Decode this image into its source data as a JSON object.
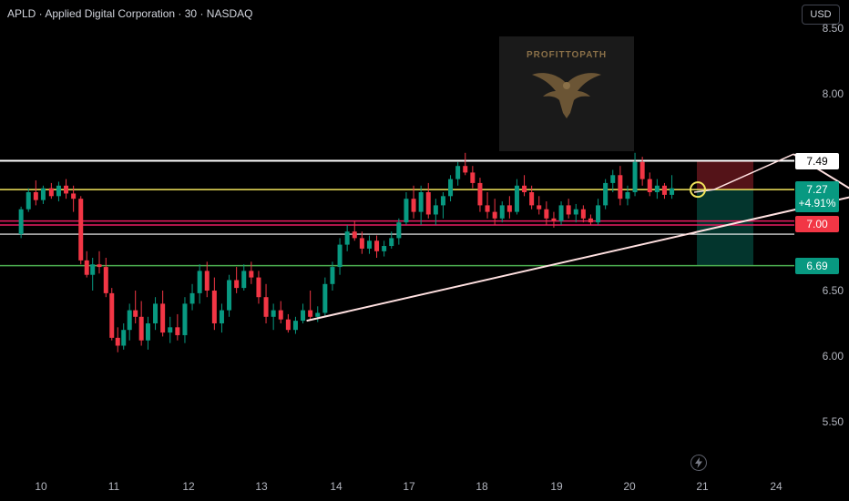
{
  "header": {
    "title": "APLD · Applied Digital Corporation · 30 · NASDAQ",
    "currency": "USD"
  },
  "watermark": {
    "text": "PROFITTOPATH"
  },
  "price_axis": {
    "ticks": [
      "8.50",
      "8.00",
      "6.50",
      "6.00",
      "5.50"
    ]
  },
  "time_axis": {
    "ticks": [
      "10",
      "11",
      "12",
      "13",
      "14",
      "17",
      "18",
      "19",
      "20",
      "21",
      "24"
    ]
  },
  "price_tags": {
    "resistance": "7.49",
    "last_price": "7.27",
    "last_change": "+4.91%",
    "support_red": "7.00",
    "support_green": "6.69"
  },
  "colors": {
    "up": "#089981",
    "down": "#f23645",
    "resistance_line": "#ffffff",
    "current_line": "#f2e55c",
    "support_line": "#e91e63",
    "green_line": "#4caf50",
    "trendline": "#ffe0e0"
  },
  "chart_data": {
    "type": "candlestick",
    "title": "APLD · Applied Digital Corporation · 30 · NASDAQ",
    "ylim": [
      5.2,
      8.6
    ],
    "levels": {
      "resistance": 7.49,
      "current": 7.27,
      "pink_upper": 7.03,
      "pink_lower": 7.0,
      "white_lower": 6.93,
      "support": 6.69
    },
    "trade_box": {
      "entry": 7.27,
      "stop": 7.49,
      "target": 6.69
    },
    "trendlines": [
      {
        "from": [
          13.6,
          6.27
        ],
        "to": [
          21.1,
          7.23
        ]
      },
      {
        "from": [
          20.2,
          7.54
        ],
        "to": [
          21.1,
          7.23
        ]
      }
    ],
    "candles": [
      [
        9.73,
        6.93,
        7.14,
        6.9,
        7.12
      ],
      [
        9.83,
        7.12,
        7.28,
        7.1,
        7.25
      ],
      [
        9.93,
        7.25,
        7.34,
        7.15,
        7.19
      ],
      [
        10.03,
        7.19,
        7.3,
        7.16,
        7.28
      ],
      [
        10.14,
        7.28,
        7.32,
        7.2,
        7.22
      ],
      [
        10.24,
        7.22,
        7.33,
        7.18,
        7.3
      ],
      [
        10.34,
        7.3,
        7.35,
        7.2,
        7.24
      ],
      [
        10.44,
        7.24,
        7.3,
        7.1,
        7.2
      ],
      [
        10.54,
        7.2,
        7.22,
        6.7,
        6.73
      ],
      [
        10.62,
        6.73,
        6.8,
        6.6,
        6.62
      ],
      [
        10.7,
        6.62,
        6.75,
        6.5,
        6.7
      ],
      [
        10.79,
        6.7,
        6.8,
        6.63,
        6.68
      ],
      [
        10.88,
        6.68,
        6.75,
        6.45,
        6.48
      ],
      [
        10.96,
        6.48,
        6.52,
        6.12,
        6.14
      ],
      [
        11.04,
        6.14,
        6.22,
        6.03,
        6.08
      ],
      [
        11.12,
        6.08,
        6.25,
        6.05,
        6.2
      ],
      [
        11.2,
        6.2,
        6.4,
        6.12,
        6.35
      ],
      [
        11.28,
        6.35,
        6.5,
        6.25,
        6.3
      ],
      [
        11.36,
        6.3,
        6.42,
        6.08,
        6.12
      ],
      [
        11.45,
        6.12,
        6.3,
        6.05,
        6.25
      ],
      [
        11.55,
        6.25,
        6.45,
        6.2,
        6.4
      ],
      [
        11.65,
        6.4,
        6.5,
        6.15,
        6.18
      ],
      [
        11.75,
        6.18,
        6.3,
        6.1,
        6.22
      ],
      [
        11.85,
        6.22,
        6.32,
        6.12,
        6.16
      ],
      [
        11.95,
        6.16,
        6.45,
        6.1,
        6.4
      ],
      [
        12.05,
        6.4,
        6.55,
        6.35,
        6.48
      ],
      [
        12.15,
        6.48,
        6.7,
        6.4,
        6.65
      ],
      [
        12.25,
        6.65,
        6.72,
        6.45,
        6.5
      ],
      [
        12.35,
        6.5,
        6.6,
        6.2,
        6.25
      ],
      [
        12.45,
        6.25,
        6.4,
        6.18,
        6.35
      ],
      [
        12.55,
        6.35,
        6.62,
        6.3,
        6.58
      ],
      [
        12.65,
        6.58,
        6.68,
        6.48,
        6.52
      ],
      [
        12.75,
        6.52,
        6.7,
        6.5,
        6.65
      ],
      [
        12.85,
        6.65,
        6.72,
        6.55,
        6.6
      ],
      [
        12.95,
        6.6,
        6.65,
        6.4,
        6.45
      ],
      [
        13.05,
        6.45,
        6.55,
        6.25,
        6.3
      ],
      [
        13.15,
        6.3,
        6.4,
        6.2,
        6.35
      ],
      [
        13.25,
        6.35,
        6.42,
        6.25,
        6.28
      ],
      [
        13.35,
        6.28,
        6.32,
        6.18,
        6.2
      ],
      [
        13.45,
        6.2,
        6.3,
        6.17,
        6.27
      ],
      [
        13.55,
        6.27,
        6.4,
        6.25,
        6.35
      ],
      [
        13.65,
        6.35,
        6.5,
        6.28,
        6.3
      ],
      [
        13.75,
        6.3,
        6.38,
        6.26,
        6.33
      ],
      [
        13.85,
        6.33,
        6.6,
        6.3,
        6.55
      ],
      [
        13.95,
        6.55,
        6.72,
        6.5,
        6.68
      ],
      [
        14.05,
        6.68,
        6.9,
        6.62,
        6.85
      ],
      [
        14.15,
        6.85,
        7.0,
        6.8,
        6.95
      ],
      [
        14.25,
        6.95,
        7.03,
        6.88,
        6.9
      ],
      [
        14.35,
        6.9,
        6.95,
        6.78,
        6.82
      ],
      [
        14.45,
        6.82,
        6.92,
        6.78,
        6.88
      ],
      [
        14.55,
        6.88,
        6.92,
        6.75,
        6.8
      ],
      [
        14.65,
        6.8,
        6.88,
        6.76,
        6.84
      ],
      [
        14.75,
        6.84,
        6.95,
        6.82,
        6.9
      ],
      [
        14.85,
        6.9,
        7.05,
        6.85,
        7.02
      ],
      [
        14.95,
        7.02,
        7.25,
        7.0,
        7.2
      ],
      [
        15.05,
        7.2,
        7.3,
        7.05,
        7.1
      ],
      [
        15.15,
        7.1,
        7.3,
        7.0,
        7.25
      ],
      [
        15.25,
        7.25,
        7.32,
        7.05,
        7.08
      ],
      [
        15.35,
        7.08,
        7.2,
        7.0,
        7.15
      ],
      [
        15.45,
        7.15,
        7.25,
        7.05,
        7.22
      ],
      [
        15.55,
        7.22,
        7.38,
        7.18,
        7.35
      ],
      [
        15.65,
        7.35,
        7.48,
        7.3,
        7.45
      ],
      [
        15.75,
        7.45,
        7.55,
        7.38,
        7.4
      ],
      [
        15.85,
        7.4,
        7.45,
        7.28,
        7.32
      ],
      [
        15.95,
        7.32,
        7.36,
        7.1,
        7.15
      ],
      [
        16.05,
        7.15,
        7.25,
        7.05,
        7.1
      ],
      [
        16.15,
        7.1,
        7.2,
        7.0,
        7.05
      ],
      [
        16.25,
        7.05,
        7.18,
        7.02,
        7.15
      ],
      [
        16.35,
        7.15,
        7.22,
        7.05,
        7.1
      ],
      [
        16.45,
        7.1,
        7.35,
        7.08,
        7.3
      ],
      [
        16.55,
        7.3,
        7.38,
        7.22,
        7.25
      ],
      [
        16.65,
        7.25,
        7.3,
        7.12,
        7.15
      ],
      [
        16.75,
        7.15,
        7.22,
        7.08,
        7.12
      ],
      [
        16.85,
        7.12,
        7.18,
        7.0,
        7.05
      ],
      [
        16.95,
        7.05,
        7.1,
        6.98,
        7.03
      ],
      [
        17.05,
        7.03,
        7.18,
        7.0,
        7.15
      ],
      [
        17.15,
        7.15,
        7.2,
        7.05,
        7.08
      ],
      [
        17.25,
        7.08,
        7.16,
        7.02,
        7.12
      ],
      [
        17.35,
        7.12,
        7.15,
        7.02,
        7.05
      ],
      [
        17.45,
        7.05,
        7.08,
        7.0,
        7.02
      ],
      [
        17.55,
        7.02,
        7.2,
        7.0,
        7.15
      ],
      [
        17.65,
        7.15,
        7.35,
        7.12,
        7.32
      ],
      [
        17.75,
        7.32,
        7.42,
        7.25,
        7.38
      ],
      [
        17.85,
        7.38,
        7.45,
        7.15,
        7.2
      ],
      [
        17.95,
        7.2,
        7.3,
        7.15,
        7.25
      ],
      [
        18.05,
        7.25,
        7.55,
        7.22,
        7.48
      ],
      [
        18.15,
        7.48,
        7.52,
        7.3,
        7.35
      ],
      [
        18.25,
        7.35,
        7.4,
        7.22,
        7.25
      ],
      [
        18.35,
        7.25,
        7.35,
        7.2,
        7.3
      ],
      [
        18.45,
        7.3,
        7.32,
        7.2,
        7.23
      ],
      [
        18.55,
        7.23,
        7.38,
        7.2,
        7.28
      ]
    ]
  }
}
